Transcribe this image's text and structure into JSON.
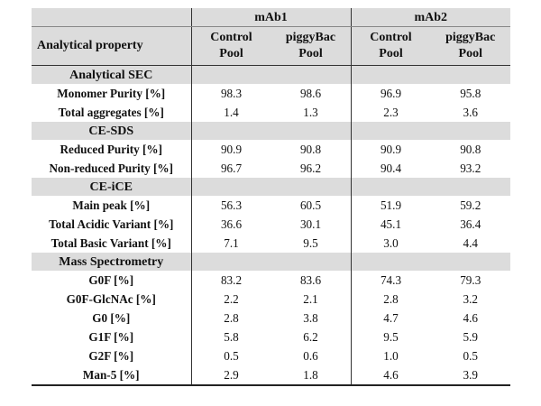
{
  "header": {
    "property_label": "Analytical property",
    "groups": [
      "mAb1",
      "mAb2"
    ],
    "sub": [
      [
        "Control",
        "Pool"
      ],
      [
        "piggyBac",
        "Pool"
      ],
      [
        "Control",
        "Pool"
      ],
      [
        "piggyBac",
        "Pool"
      ]
    ]
  },
  "sections": [
    {
      "title": "Analytical SEC",
      "rows": [
        {
          "label": "Monomer Purity [%]",
          "values": [
            "98.3",
            "98.6",
            "96.9",
            "95.8"
          ]
        },
        {
          "label": "Total aggregates [%]",
          "values": [
            "1.4",
            "1.3",
            "2.3",
            "3.6"
          ]
        }
      ]
    },
    {
      "title": "CE-SDS",
      "rows": [
        {
          "label": "Reduced Purity [%]",
          "values": [
            "90.9",
            "90.8",
            "90.9",
            "90.8"
          ]
        },
        {
          "label": "Non-reduced Purity [%]",
          "values": [
            "96.7",
            "96.2",
            "90.4",
            "93.2"
          ]
        }
      ]
    },
    {
      "title": "CE-iCE",
      "rows": [
        {
          "label": "Main peak [%]",
          "values": [
            "56.3",
            "60.5",
            "51.9",
            "59.2"
          ]
        },
        {
          "label": "Total Acidic Variant [%]",
          "values": [
            "36.6",
            "30.1",
            "45.1",
            "36.4"
          ]
        },
        {
          "label": "Total Basic Variant [%]",
          "values": [
            "7.1",
            "9.5",
            "3.0",
            "4.4"
          ]
        }
      ]
    },
    {
      "title": "Mass Spectrometry",
      "rows": [
        {
          "label": "G0F [%]",
          "values": [
            "83.2",
            "83.6",
            "74.3",
            "79.3"
          ]
        },
        {
          "label": "G0F-GlcNAc [%]",
          "values": [
            "2.2",
            "2.1",
            "2.8",
            "3.2"
          ]
        },
        {
          "label": "G0 [%]",
          "values": [
            "2.8",
            "3.8",
            "4.7",
            "4.6"
          ]
        },
        {
          "label": "G1F [%]",
          "values": [
            "5.8",
            "6.2",
            "9.5",
            "5.9"
          ]
        },
        {
          "label": "G2F [%]",
          "values": [
            "0.5",
            "0.6",
            "1.0",
            "0.5"
          ]
        },
        {
          "label": "Man-5 [%]",
          "values": [
            "2.9",
            "1.8",
            "4.6",
            "3.9"
          ]
        }
      ]
    }
  ]
}
